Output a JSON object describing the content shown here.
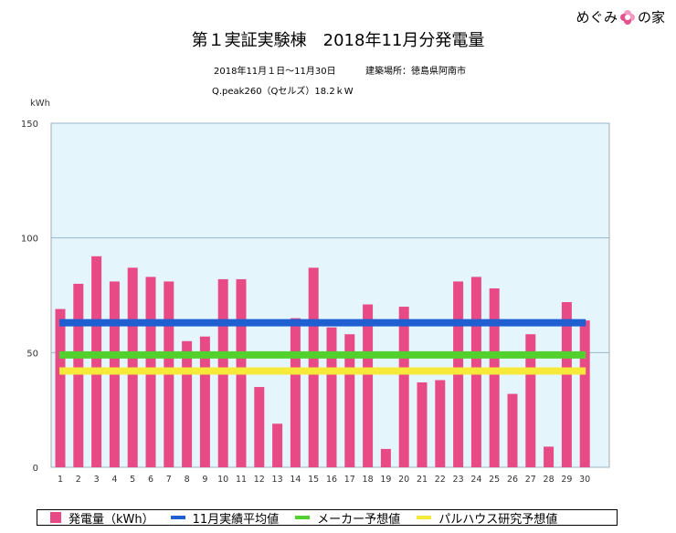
{
  "logo": {
    "text_left": "めぐみ",
    "text_right": "の家"
  },
  "header": {
    "title": "第１実証実験棟　2018年11月分発電量",
    "period": "2018年11月１日〜11月30日",
    "location": "建築場所：徳島県阿南市",
    "panel": "Q.peak260（Qセルズ）18.2ｋW"
  },
  "colors": {
    "bar": "#e84a86",
    "avg": "#1f5fd1",
    "maker": "#52d12e",
    "pal": "#f7e93a",
    "plot_bg": "#e4f6fc"
  },
  "chart_data": {
    "type": "bar",
    "ylabel": "kWh",
    "ylim": [
      0,
      150
    ],
    "yticks": [
      0,
      50,
      100,
      150
    ],
    "categories": [
      "1",
      "2",
      "3",
      "4",
      "5",
      "6",
      "7",
      "8",
      "9",
      "10",
      "11",
      "12",
      "13",
      "14",
      "15",
      "16",
      "17",
      "18",
      "19",
      "20",
      "21",
      "22",
      "23",
      "24",
      "25",
      "26",
      "27",
      "28",
      "29",
      "30"
    ],
    "series": [
      {
        "name": "発電量（kWh）",
        "type": "bar",
        "values": [
          69,
          80,
          92,
          81,
          87,
          83,
          81,
          55,
          57,
          82,
          82,
          35,
          19,
          65,
          87,
          61,
          58,
          71,
          8,
          70,
          37,
          38,
          81,
          83,
          78,
          32,
          58,
          9,
          72,
          64
        ]
      },
      {
        "name": "11月実績平均値",
        "type": "line",
        "value": 63
      },
      {
        "name": "メーカー予想値",
        "type": "line",
        "value": 49
      },
      {
        "name": "パルハウス研究予想値",
        "type": "line",
        "value": 42
      }
    ],
    "legend_position": "bottom",
    "grid": true
  }
}
